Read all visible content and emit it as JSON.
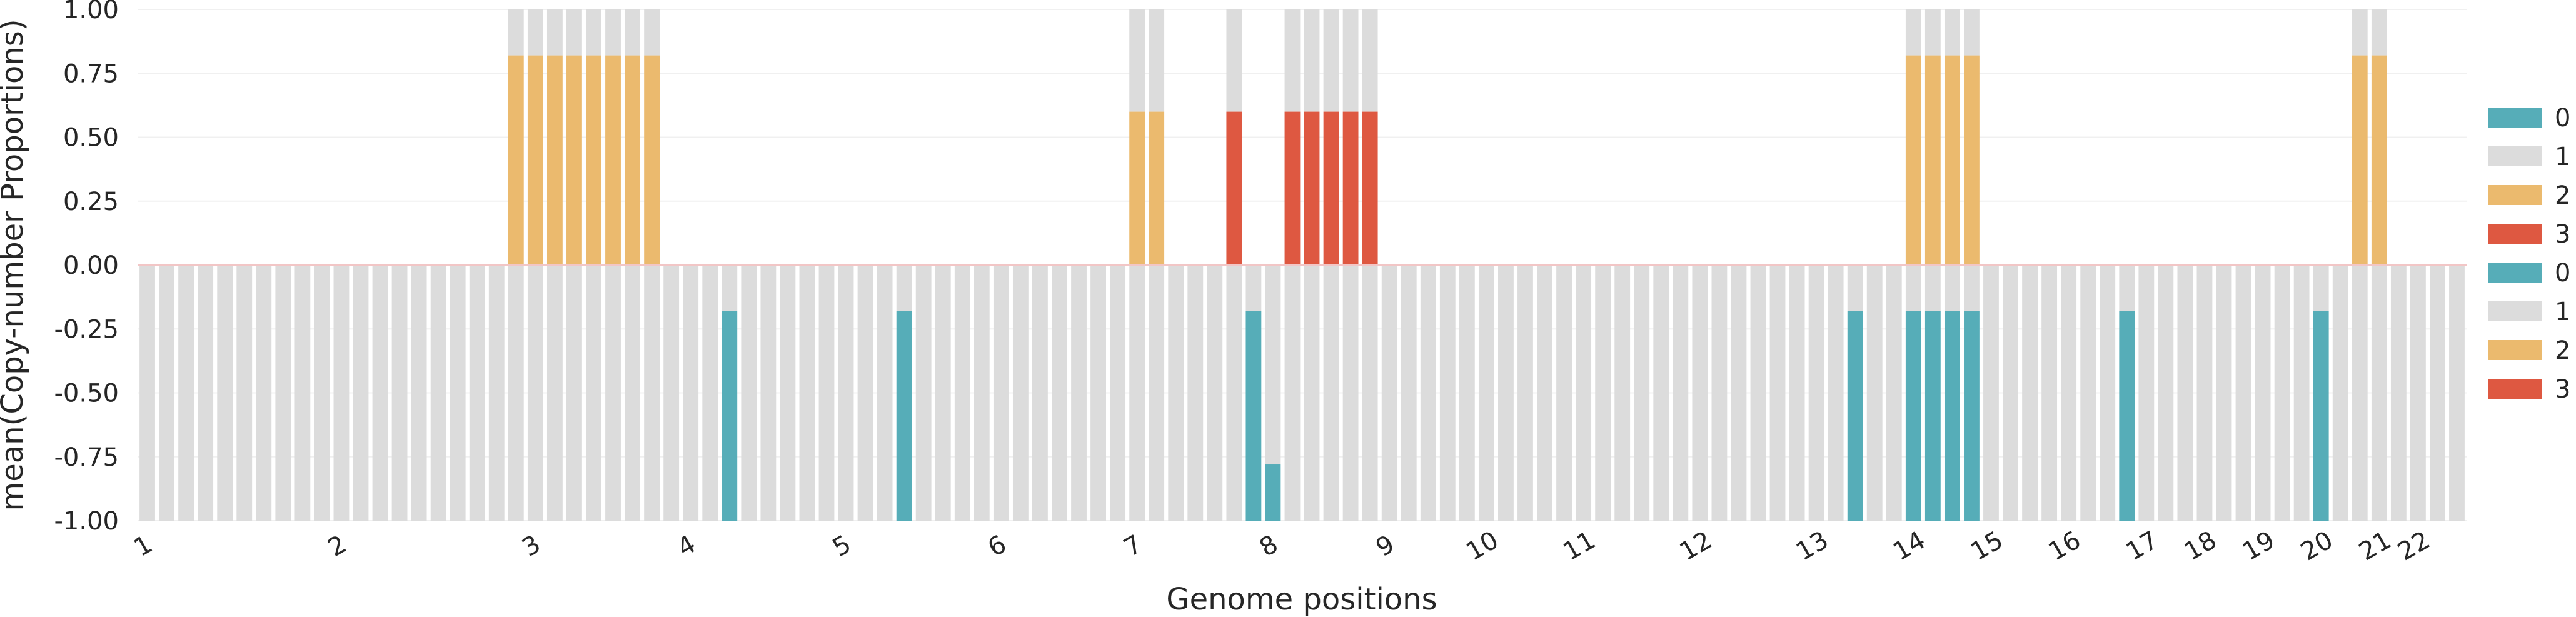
{
  "chart_data": {
    "type": "bar",
    "title": "",
    "xlabel": "Genome positions",
    "ylabel": "mean(Copy-number Proportions)",
    "ylim": [
      -1.0,
      1.0
    ],
    "yticks": [
      "-1.00",
      "-0.75",
      "-0.50",
      "-0.25",
      "0.00",
      "0.25",
      "0.50",
      "0.75",
      "1.00"
    ],
    "grid": true,
    "legend_position": "right",
    "colors": {
      "0": "#56adb8",
      "1": "#dcdcdc",
      "2": "#ebba6e",
      "3": "#de5841"
    },
    "legend": [
      "0",
      "1",
      "2",
      "3",
      "0",
      "1",
      "2",
      "3"
    ],
    "x_tick_labels": [
      {
        "label": "1",
        "bin": 0
      },
      {
        "label": "2",
        "bin": 10
      },
      {
        "label": "3",
        "bin": 20
      },
      {
        "label": "4",
        "bin": 28
      },
      {
        "label": "5",
        "bin": 36
      },
      {
        "label": "6",
        "bin": 44
      },
      {
        "label": "7",
        "bin": 51
      },
      {
        "label": "8",
        "bin": 58
      },
      {
        "label": "9",
        "bin": 64
      },
      {
        "label": "10",
        "bin": 69
      },
      {
        "label": "11",
        "bin": 74
      },
      {
        "label": "12",
        "bin": 80
      },
      {
        "label": "13",
        "bin": 86
      },
      {
        "label": "14",
        "bin": 91
      },
      {
        "label": "15",
        "bin": 95
      },
      {
        "label": "16",
        "bin": 99
      },
      {
        "label": "17",
        "bin": 103
      },
      {
        "label": "18",
        "bin": 106
      },
      {
        "label": "19",
        "bin": 109
      },
      {
        "label": "20",
        "bin": 112
      },
      {
        "label": "21",
        "bin": 115
      },
      {
        "label": "22",
        "bin": 117
      }
    ],
    "n_bins": 120,
    "upper_series": [
      {
        "state": "2",
        "bins": [
          19,
          20,
          21,
          22,
          23,
          24,
          25,
          26
        ],
        "value": 0.82
      },
      {
        "state": "2",
        "bins": [
          51,
          52
        ],
        "value": 0.6
      },
      {
        "state": "3",
        "bins": [
          56
        ],
        "value": 0.6
      },
      {
        "state": "3",
        "bins": [
          59,
          60,
          61,
          62,
          63
        ],
        "value": 0.6
      },
      {
        "state": "2",
        "bins": [
          91,
          92,
          93,
          94
        ],
        "value": 0.82
      },
      {
        "state": "2",
        "bins": [
          114,
          115
        ],
        "value": 0.82
      }
    ],
    "lower_series": [
      {
        "state": "0",
        "bins": [
          30
        ],
        "value": -0.18
      },
      {
        "state": "0",
        "bins": [
          39
        ],
        "value": -0.18
      },
      {
        "state": "0",
        "bins": [
          57
        ],
        "value": -0.18
      },
      {
        "state": "0",
        "bins": [
          58
        ],
        "value": -0.78
      },
      {
        "state": "0",
        "bins": [
          88
        ],
        "value": -0.18
      },
      {
        "state": "0",
        "bins": [
          91,
          92,
          93,
          94
        ],
        "value": -0.18
      },
      {
        "state": "0",
        "bins": [
          102
        ],
        "value": -0.18
      },
      {
        "state": "0",
        "bins": [
          112
        ],
        "value": -0.18
      }
    ]
  }
}
